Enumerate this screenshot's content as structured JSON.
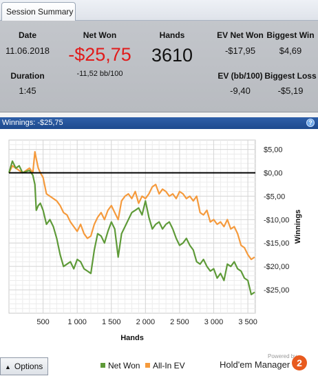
{
  "tab": {
    "label": "Session Summary"
  },
  "summary": {
    "date": {
      "label": "Date",
      "value": "11.06.2018"
    },
    "duration": {
      "label": "Duration",
      "value": "1:45"
    },
    "net_won": {
      "label": "Net Won",
      "value": "-$25,75",
      "bb": "-11,52 bb/100"
    },
    "hands": {
      "label": "Hands",
      "value": "3610"
    },
    "ev_net_won": {
      "label": "EV Net Won",
      "value": "-$17,95"
    },
    "ev_bb100": {
      "label": "EV (bb/100)",
      "value": "-9,40"
    },
    "biggest_win": {
      "label": "Biggest Win",
      "value": "$4,69"
    },
    "biggest_loss": {
      "label": "Biggest Loss",
      "value": "-$5,19"
    }
  },
  "winnings_bar": {
    "label": "Winnings:  -$25,75",
    "help": "?"
  },
  "chart_data": {
    "type": "line",
    "xlabel": "Hands",
    "ylabel": "Winnings",
    "xlim": [
      0,
      3610
    ],
    "ylim": [
      -30,
      7
    ],
    "x_ticks": [
      500,
      1000,
      1500,
      2000,
      2500,
      3000,
      3500
    ],
    "x_tick_labels": [
      "500",
      "1 000",
      "1 500",
      "2 000",
      "2 500",
      "3 000",
      "3 500"
    ],
    "y_ticks": [
      5,
      0,
      -5,
      -10,
      -15,
      -20,
      -25
    ],
    "y_tick_labels": [
      "$5,00",
      "$0,00",
      "-$5,00",
      "-$10,00",
      "-$15,00",
      "-$20,00",
      "-$25,00"
    ],
    "grid": true,
    "zero_line": true,
    "series": [
      {
        "name": "Net Won",
        "color": "#5e9a38",
        "x": [
          0,
          50,
          100,
          150,
          200,
          250,
          300,
          350,
          380,
          400,
          430,
          460,
          500,
          550,
          600,
          650,
          700,
          750,
          800,
          850,
          900,
          950,
          1000,
          1050,
          1100,
          1150,
          1200,
          1250,
          1300,
          1350,
          1400,
          1450,
          1500,
          1550,
          1600,
          1650,
          1700,
          1750,
          1800,
          1850,
          1900,
          1950,
          2000,
          2050,
          2100,
          2150,
          2200,
          2250,
          2300,
          2350,
          2400,
          2450,
          2500,
          2550,
          2600,
          2650,
          2700,
          2750,
          2800,
          2850,
          2900,
          2950,
          3000,
          3050,
          3100,
          3150,
          3200,
          3250,
          3300,
          3350,
          3400,
          3450,
          3500,
          3550,
          3600
        ],
        "values": [
          0,
          2.5,
          1.0,
          1.5,
          0,
          0.3,
          0.5,
          -0.5,
          -2.5,
          -8.0,
          -7.0,
          -6.5,
          -8.0,
          -11.0,
          -10.0,
          -11.5,
          -14.0,
          -17.5,
          -20.0,
          -19.5,
          -19.0,
          -20.5,
          -18.5,
          -19.0,
          -20.5,
          -21.0,
          -21.5,
          -16.5,
          -13.0,
          -13.5,
          -15.0,
          -12.5,
          -10.5,
          -12.0,
          -18.0,
          -13.0,
          -11.5,
          -10.0,
          -8.5,
          -8.0,
          -7.5,
          -9.0,
          -6.0,
          -9.5,
          -12.0,
          -11.0,
          -10.5,
          -12.0,
          -11.0,
          -10.5,
          -12.0,
          -14.0,
          -15.5,
          -15.0,
          -14.0,
          -15.5,
          -16.5,
          -19.0,
          -19.5,
          -18.5,
          -20.0,
          -21.0,
          -20.5,
          -22.5,
          -21.5,
          -23.0,
          -19.5,
          -20.0,
          -19.0,
          -20.5,
          -21.0,
          -22.5,
          -23.0,
          -26.0,
          -25.5
        ]
      },
      {
        "name": "All-In EV",
        "color": "#f59a3c",
        "x": [
          0,
          50,
          100,
          150,
          200,
          250,
          300,
          350,
          380,
          400,
          430,
          460,
          500,
          550,
          600,
          650,
          700,
          750,
          800,
          850,
          900,
          950,
          1000,
          1050,
          1100,
          1150,
          1200,
          1250,
          1300,
          1350,
          1400,
          1450,
          1500,
          1550,
          1600,
          1650,
          1700,
          1750,
          1800,
          1850,
          1900,
          1950,
          2000,
          2050,
          2100,
          2150,
          2200,
          2250,
          2300,
          2350,
          2400,
          2450,
          2500,
          2550,
          2600,
          2650,
          2700,
          2750,
          2800,
          2850,
          2900,
          2950,
          3000,
          3050,
          3100,
          3150,
          3200,
          3250,
          3300,
          3350,
          3400,
          3450,
          3500,
          3550,
          3600
        ],
        "values": [
          0,
          1.5,
          1.0,
          0.5,
          0,
          0.5,
          1.0,
          0,
          4.5,
          3.0,
          1.0,
          0,
          -1.0,
          -4.5,
          -5.0,
          -5.5,
          -6.0,
          -7.0,
          -8.5,
          -9.0,
          -10.5,
          -11.5,
          -12.5,
          -11.0,
          -13.0,
          -14.0,
          -13.5,
          -11.0,
          -9.5,
          -8.5,
          -10.0,
          -8.0,
          -7.0,
          -8.5,
          -10.0,
          -6.0,
          -5.0,
          -4.5,
          -5.5,
          -4.0,
          -6.5,
          -5.0,
          -5.5,
          -4.5,
          -3.0,
          -2.5,
          -4.5,
          -3.5,
          -4.0,
          -5.0,
          -4.5,
          -5.5,
          -4.0,
          -4.5,
          -5.5,
          -5.0,
          -6.0,
          -5.0,
          -8.5,
          -9.0,
          -8.0,
          -10.5,
          -10.0,
          -11.0,
          -10.5,
          -11.5,
          -10.0,
          -12.0,
          -11.5,
          -13.0,
          -15.5,
          -16.0,
          -17.5,
          -18.5,
          -18.0
        ]
      }
    ]
  },
  "bottom": {
    "options_label": "Options",
    "options_arrow": "▲",
    "legend": [
      {
        "label": "Net Won",
        "color": "#5e9a38"
      },
      {
        "label": "All-In EV",
        "color": "#f59a3c"
      }
    ],
    "powered_by": "Powered by",
    "brand": "Hold'em Manager",
    "brand_badge": "2"
  }
}
